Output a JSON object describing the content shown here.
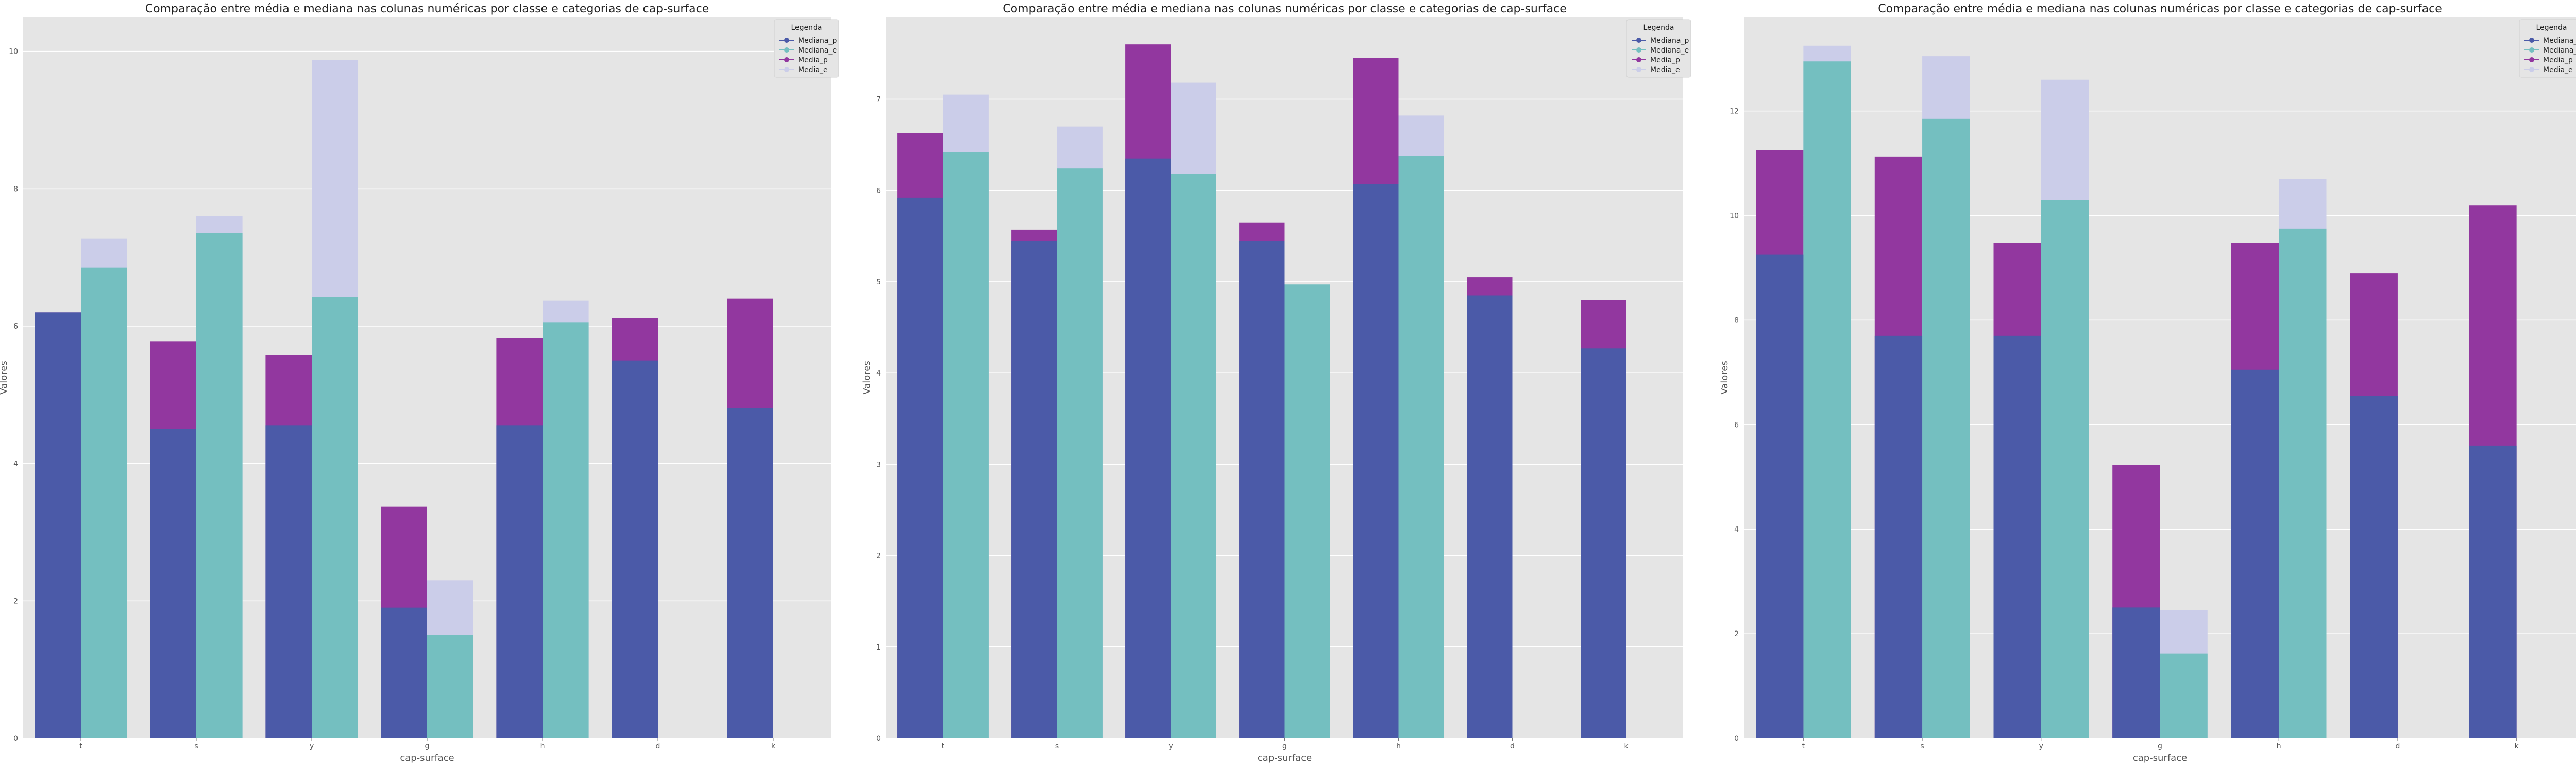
{
  "colors": {
    "mediana_p": "#4b5aa8",
    "mediana_e": "#74bfc0",
    "media_p": "#92379f",
    "media_e": "#cbcde9",
    "plot_bg": "#e5e5e5",
    "grid": "#ffffff"
  },
  "chart_data": [
    {
      "type": "bar",
      "title": "Comparação entre média e mediana nas colunas numéricas por classe e categorias de cap-surface",
      "xlabel": "cap-surface",
      "ylabel": "Valores",
      "categories": [
        "t",
        "s",
        "y",
        "g",
        "h",
        "d",
        "k"
      ],
      "ylim": [
        0,
        10.5
      ],
      "yticks": [
        0,
        2,
        4,
        6,
        8,
        10
      ],
      "grid": true,
      "legend": {
        "title": "Legenda",
        "placement": "top-right",
        "entries": [
          "Mediana_p",
          "Mediana_e",
          "Media_p",
          "Media_e"
        ]
      },
      "series": [
        {
          "name": "Mediana_p",
          "values": [
            6.2,
            4.5,
            4.55,
            1.9,
            4.55,
            5.5,
            4.8
          ]
        },
        {
          "name": "Mediana_e",
          "values": [
            6.85,
            7.35,
            6.42,
            1.5,
            6.05,
            null,
            null
          ]
        },
        {
          "name": "Media_p",
          "values": [
            6.2,
            5.78,
            5.58,
            3.37,
            5.82,
            6.12,
            6.4
          ]
        },
        {
          "name": "Media_e",
          "values": [
            7.27,
            7.6,
            9.87,
            2.3,
            6.37,
            null,
            null
          ]
        }
      ]
    },
    {
      "type": "bar",
      "title": "Comparação entre média e mediana nas colunas numéricas por classe e categorias de cap-surface",
      "xlabel": "cap-surface",
      "ylabel": "Valores",
      "categories": [
        "t",
        "s",
        "y",
        "g",
        "h",
        "d",
        "k"
      ],
      "ylim": [
        0,
        7.9
      ],
      "yticks": [
        0,
        1,
        2,
        3,
        4,
        5,
        6,
        7
      ],
      "grid": true,
      "legend": {
        "title": "Legenda",
        "placement": "top-right",
        "entries": [
          "Mediana_p",
          "Mediana_e",
          "Media_p",
          "Media_e"
        ]
      },
      "series": [
        {
          "name": "Mediana_p",
          "values": [
            5.92,
            5.45,
            6.35,
            5.45,
            6.07,
            4.85,
            4.27
          ]
        },
        {
          "name": "Mediana_e",
          "values": [
            6.42,
            6.24,
            6.18,
            4.97,
            6.38,
            null,
            null
          ]
        },
        {
          "name": "Media_p",
          "values": [
            6.63,
            5.57,
            7.6,
            5.65,
            7.45,
            5.05,
            4.8
          ]
        },
        {
          "name": "Media_e",
          "values": [
            7.05,
            6.7,
            7.18,
            null,
            6.82,
            null,
            null
          ]
        }
      ]
    },
    {
      "type": "bar",
      "title": "Comparação entre média e mediana nas colunas numéricas por classe e categorias de cap-surface",
      "xlabel": "cap-surface",
      "ylabel": "Valores",
      "categories": [
        "t",
        "s",
        "y",
        "g",
        "h",
        "d",
        "k"
      ],
      "ylim": [
        0,
        13.8
      ],
      "yticks": [
        0,
        2,
        4,
        6,
        8,
        10,
        12
      ],
      "grid": true,
      "legend": {
        "title": "Legenda",
        "placement": "top-right",
        "entries": [
          "Mediana_p",
          "Mediana_e",
          "Media_p",
          "Media_e"
        ]
      },
      "series": [
        {
          "name": "Mediana_p",
          "values": [
            9.25,
            7.7,
            7.7,
            2.5,
            7.05,
            6.55,
            5.6
          ]
        },
        {
          "name": "Mediana_e",
          "values": [
            12.95,
            11.85,
            10.3,
            1.62,
            9.75,
            null,
            null
          ]
        },
        {
          "name": "Media_p",
          "values": [
            11.25,
            11.13,
            9.48,
            5.23,
            9.48,
            8.9,
            10.2
          ]
        },
        {
          "name": "Media_e",
          "values": [
            13.25,
            13.05,
            12.6,
            2.45,
            10.7,
            null,
            null
          ]
        }
      ]
    }
  ]
}
